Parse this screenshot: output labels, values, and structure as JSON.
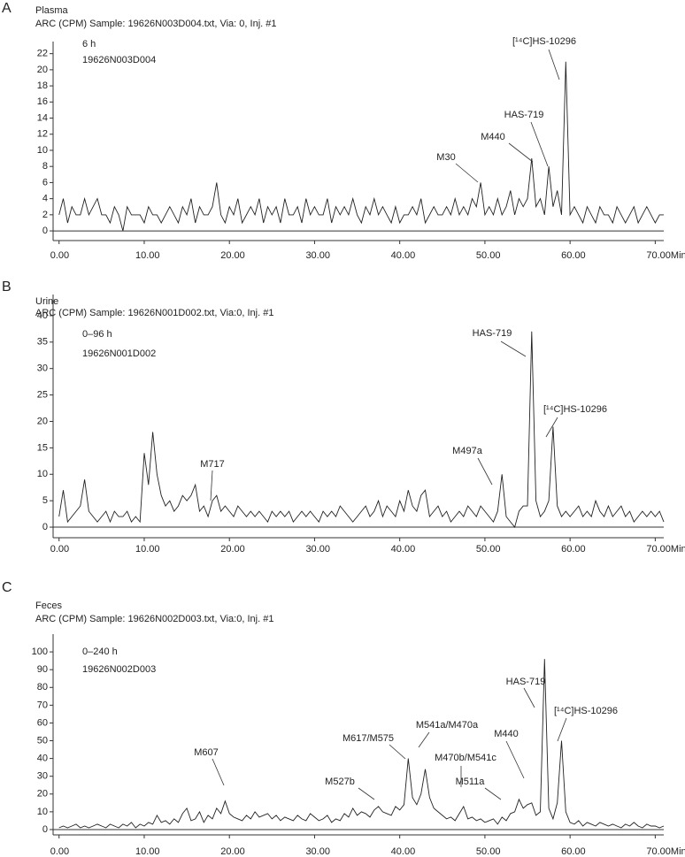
{
  "chart_data": [
    {
      "type": "line",
      "panel": "A",
      "sample": "Plasma",
      "title": "ARC (CPM) Sample: 19626N003D004.txt, Via: 0, Inj. #1",
      "notes": [
        "6 h",
        "19626N003D004"
      ],
      "color": "#222222",
      "xlim": [
        -0.7,
        71
      ],
      "ylim": [
        -1.2,
        23.5
      ],
      "xticks": [
        {
          "value": 0,
          "label": "0.00"
        },
        {
          "value": 10,
          "label": "10.00"
        },
        {
          "value": 20,
          "label": "20.00"
        },
        {
          "value": 30,
          "label": "30.00"
        },
        {
          "value": 40,
          "label": "40.00"
        },
        {
          "value": 50,
          "label": "50.00"
        },
        {
          "value": 60,
          "label": "60.00"
        },
        {
          "value": 70,
          "label": "70.00Min"
        }
      ],
      "yticks": [
        0,
        2,
        4,
        6,
        8,
        10,
        12,
        14,
        16,
        18,
        20,
        22
      ],
      "x": [
        0,
        0.5,
        1,
        1.5,
        2,
        2.5,
        3,
        3.5,
        4,
        4.5,
        5,
        5.5,
        6,
        6.5,
        7,
        7.5,
        8,
        8.5,
        9,
        9.5,
        10,
        10.5,
        11,
        11.5,
        12,
        12.5,
        13,
        13.5,
        14,
        14.5,
        15,
        15.5,
        16,
        16.5,
        17,
        17.5,
        18,
        18.5,
        19,
        19.5,
        20,
        20.5,
        21,
        21.5,
        22,
        22.5,
        23,
        23.5,
        24,
        24.5,
        25,
        25.5,
        26,
        26.5,
        27,
        27.5,
        28,
        28.5,
        29,
        29.5,
        30,
        30.5,
        31,
        31.5,
        32,
        32.5,
        33,
        33.5,
        34,
        34.5,
        35,
        35.5,
        36,
        36.5,
        37,
        37.5,
        38,
        38.5,
        39,
        39.5,
        40,
        40.5,
        41,
        41.5,
        42,
        42.5,
        43,
        43.5,
        44,
        44.5,
        45,
        45.5,
        46,
        46.5,
        47,
        47.5,
        48,
        48.5,
        49,
        49.5,
        50,
        50.5,
        51,
        51.5,
        52,
        52.5,
        53,
        53.5,
        54,
        54.5,
        55,
        55.5,
        56,
        56.5,
        57,
        57.5,
        58,
        58.5,
        59,
        59.5,
        60,
        60.5,
        61,
        61.5,
        62,
        62.5,
        63,
        63.5,
        64,
        64.5,
        65,
        65.5,
        66,
        66.5,
        67,
        67.5,
        68,
        68.5,
        69,
        69.5,
        70,
        70.5,
        71
      ],
      "values": [
        2,
        4,
        1,
        3,
        2,
        2,
        4,
        2,
        3,
        4,
        2,
        2,
        1,
        3,
        2,
        0,
        3,
        2,
        2,
        2,
        1,
        3,
        2,
        2,
        1,
        2,
        3,
        2,
        1,
        3,
        2,
        4,
        1,
        3,
        2,
        2,
        3,
        6,
        2,
        1,
        3,
        2,
        4,
        1,
        2,
        3,
        2,
        4,
        1,
        3,
        2,
        3,
        1,
        4,
        2,
        2,
        3,
        1,
        4,
        2,
        3,
        2,
        2,
        4,
        1,
        3,
        2,
        3,
        2,
        4,
        2,
        1,
        3,
        2,
        4,
        2,
        3,
        2,
        1,
        3,
        1,
        2,
        2,
        3,
        2,
        4,
        1,
        2,
        3,
        2,
        2,
        3,
        2,
        4,
        2,
        3,
        2,
        4,
        3,
        6,
        2,
        3,
        2,
        4,
        2,
        3,
        5,
        2,
        4,
        3,
        4,
        9,
        3,
        4,
        2,
        8,
        3,
        5,
        2,
        21,
        2,
        3,
        2,
        1,
        3,
        2,
        1,
        3,
        2,
        2,
        1,
        3,
        2,
        1,
        2,
        3,
        1,
        2,
        3,
        2,
        1,
        2,
        2
      ],
      "annotations": [
        "M30",
        "M440",
        "HAS-719",
        "[¹⁴C]HS-10296"
      ]
    },
    {
      "type": "line",
      "panel": "B",
      "sample": "Urine",
      "title": "ARC (CPM) Sample: 19626N001D002.txt, Via:0, Inj. #1",
      "notes": [
        "0–96 h",
        "19626N001D002"
      ],
      "color": "#222222",
      "xlim": [
        -0.7,
        71
      ],
      "ylim": [
        -2,
        44
      ],
      "xticks": [
        {
          "value": 0,
          "label": "0.00"
        },
        {
          "value": 10,
          "label": "10.00"
        },
        {
          "value": 20,
          "label": "20.00"
        },
        {
          "value": 30,
          "label": "30.00"
        },
        {
          "value": 40,
          "label": "40.00"
        },
        {
          "value": 50,
          "label": "50.00"
        },
        {
          "value": 60,
          "label": "60.00"
        },
        {
          "value": 70,
          "label": "70.00Min"
        }
      ],
      "yticks": [
        0,
        5,
        10,
        15,
        20,
        25,
        30,
        35,
        40
      ],
      "x": [
        0,
        0.5,
        1,
        1.5,
        2,
        2.5,
        3,
        3.5,
        4,
        4.5,
        5,
        5.5,
        6,
        6.5,
        7,
        7.5,
        8,
        8.5,
        9,
        9.5,
        10,
        10.5,
        11,
        11.5,
        12,
        12.5,
        13,
        13.5,
        14,
        14.5,
        15,
        15.5,
        16,
        16.5,
        17,
        17.5,
        18,
        18.5,
        19,
        19.5,
        20,
        20.5,
        21,
        21.5,
        22,
        22.5,
        23,
        23.5,
        24,
        24.5,
        25,
        25.5,
        26,
        26.5,
        27,
        27.5,
        28,
        28.5,
        29,
        29.5,
        30,
        30.5,
        31,
        31.5,
        32,
        32.5,
        33,
        33.5,
        34,
        34.5,
        35,
        35.5,
        36,
        36.5,
        37,
        37.5,
        38,
        38.5,
        39,
        39.5,
        40,
        40.5,
        41,
        41.5,
        42,
        42.5,
        43,
        43.5,
        44,
        44.5,
        45,
        45.5,
        46,
        46.5,
        47,
        47.5,
        48,
        48.5,
        49,
        49.5,
        50,
        50.5,
        51,
        51.5,
        52,
        52.5,
        53,
        53.5,
        54,
        54.5,
        55,
        55.5,
        56,
        56.5,
        57,
        57.5,
        58,
        58.5,
        59,
        59.5,
        60,
        60.5,
        61,
        61.5,
        62,
        62.5,
        63,
        63.5,
        64,
        64.5,
        65,
        65.5,
        66,
        66.5,
        67,
        67.5,
        68,
        68.5,
        69,
        69.5,
        70,
        70.5,
        71
      ],
      "values": [
        2,
        7,
        1,
        2,
        3,
        4,
        9,
        3,
        2,
        1,
        2,
        3,
        1,
        3,
        2,
        2,
        3,
        1,
        2,
        1,
        14,
        8,
        18,
        10,
        6,
        4,
        5,
        3,
        4,
        6,
        5,
        6,
        8,
        3,
        4,
        2,
        5,
        6,
        3,
        4,
        3,
        2,
        4,
        3,
        2,
        3,
        2,
        3,
        2,
        1,
        3,
        2,
        3,
        2,
        3,
        1,
        2,
        3,
        2,
        3,
        2,
        1,
        3,
        2,
        3,
        2,
        4,
        3,
        2,
        1,
        2,
        3,
        4,
        2,
        3,
        5,
        2,
        4,
        3,
        2,
        5,
        3,
        7,
        4,
        3,
        6,
        7,
        2,
        3,
        4,
        2,
        3,
        1,
        2,
        3,
        2,
        4,
        3,
        2,
        4,
        3,
        2,
        1,
        3,
        10,
        2,
        1,
        0,
        3,
        4,
        4,
        37,
        5,
        2,
        3,
        5,
        19,
        4,
        2,
        3,
        2,
        3,
        4,
        2,
        3,
        2,
        5,
        3,
        2,
        4,
        2,
        3,
        4,
        2,
        3,
        1,
        2,
        3,
        2,
        3,
        2,
        3,
        1
      ],
      "annotations": [
        "M717",
        "M497a",
        "HAS-719",
        "[¹⁴C]HS-10296"
      ]
    },
    {
      "type": "line",
      "panel": "C",
      "sample": "Feces",
      "title": "ARC (CPM) Sample: 19626N002D003.txt, Via:0, Inj. #1",
      "notes": [
        "0–240 h",
        "19626N002D003"
      ],
      "color": "#222222",
      "xlim": [
        -0.7,
        71
      ],
      "ylim": [
        -3,
        110
      ],
      "xticks": [
        {
          "value": 0,
          "label": "0.00"
        },
        {
          "value": 10,
          "label": "10.00"
        },
        {
          "value": 20,
          "label": "20.00"
        },
        {
          "value": 30,
          "label": "30.00"
        },
        {
          "value": 40,
          "label": "40.00"
        },
        {
          "value": 50,
          "label": "50.00"
        },
        {
          "value": 60,
          "label": "60.00"
        },
        {
          "value": 70,
          "label": "70.00Min"
        }
      ],
      "yticks": [
        0,
        10,
        20,
        30,
        40,
        50,
        60,
        70,
        80,
        90,
        100
      ],
      "x": [
        0,
        0.5,
        1,
        1.5,
        2,
        2.5,
        3,
        3.5,
        4,
        4.5,
        5,
        5.5,
        6,
        6.5,
        7,
        7.5,
        8,
        8.5,
        9,
        9.5,
        10,
        10.5,
        11,
        11.5,
        12,
        12.5,
        13,
        13.5,
        14,
        14.5,
        15,
        15.5,
        16,
        16.5,
        17,
        17.5,
        18,
        18.5,
        19,
        19.5,
        20,
        20.5,
        21,
        21.5,
        22,
        22.5,
        23,
        23.5,
        24,
        24.5,
        25,
        25.5,
        26,
        26.5,
        27,
        27.5,
        28,
        28.5,
        29,
        29.5,
        30,
        30.5,
        31,
        31.5,
        32,
        32.5,
        33,
        33.5,
        34,
        34.5,
        35,
        35.5,
        36,
        36.5,
        37,
        37.5,
        38,
        38.5,
        39,
        39.5,
        40,
        40.5,
        41,
        41.5,
        42,
        42.5,
        43,
        43.5,
        44,
        44.5,
        45,
        45.5,
        46,
        46.5,
        47,
        47.5,
        48,
        48.5,
        49,
        49.5,
        50,
        50.5,
        51,
        51.5,
        52,
        52.5,
        53,
        53.5,
        54,
        54.5,
        55,
        55.5,
        56,
        56.5,
        57,
        57.5,
        58,
        58.5,
        59,
        59.5,
        60,
        60.5,
        61,
        61.5,
        62,
        62.5,
        63,
        63.5,
        64,
        64.5,
        65,
        65.5,
        66,
        66.5,
        67,
        67.5,
        68,
        68.5,
        69,
        69.5,
        70,
        70.5,
        71
      ],
      "values": [
        1,
        2,
        1,
        2,
        3,
        1,
        2,
        1,
        2,
        3,
        2,
        1,
        3,
        2,
        1,
        3,
        2,
        4,
        1,
        3,
        2,
        4,
        3,
        8,
        4,
        5,
        3,
        6,
        4,
        9,
        12,
        5,
        6,
        10,
        4,
        8,
        6,
        12,
        9,
        16,
        9,
        7,
        6,
        5,
        8,
        6,
        10,
        7,
        8,
        9,
        6,
        8,
        5,
        7,
        6,
        5,
        8,
        6,
        5,
        9,
        7,
        5,
        6,
        8,
        4,
        6,
        5,
        9,
        7,
        12,
        8,
        10,
        9,
        7,
        11,
        13,
        10,
        9,
        8,
        13,
        11,
        14,
        40,
        18,
        14,
        20,
        34,
        18,
        12,
        10,
        8,
        6,
        7,
        5,
        9,
        13,
        6,
        7,
        5,
        6,
        4,
        5,
        6,
        3,
        7,
        5,
        9,
        10,
        17,
        12,
        14,
        15,
        8,
        10,
        96,
        12,
        6,
        15,
        50,
        10,
        4,
        3,
        5,
        2,
        4,
        3,
        2,
        4,
        3,
        2,
        3,
        2,
        1,
        3,
        2,
        4,
        2,
        1,
        3,
        2,
        2,
        1,
        2
      ],
      "annotations": [
        "M607",
        "M527b",
        "M617/M575",
        "M541a/M470a",
        "M470b/M541c",
        "M511a",
        "M440",
        "HAS-719",
        "[¹⁴C]HS-10296"
      ]
    }
  ]
}
